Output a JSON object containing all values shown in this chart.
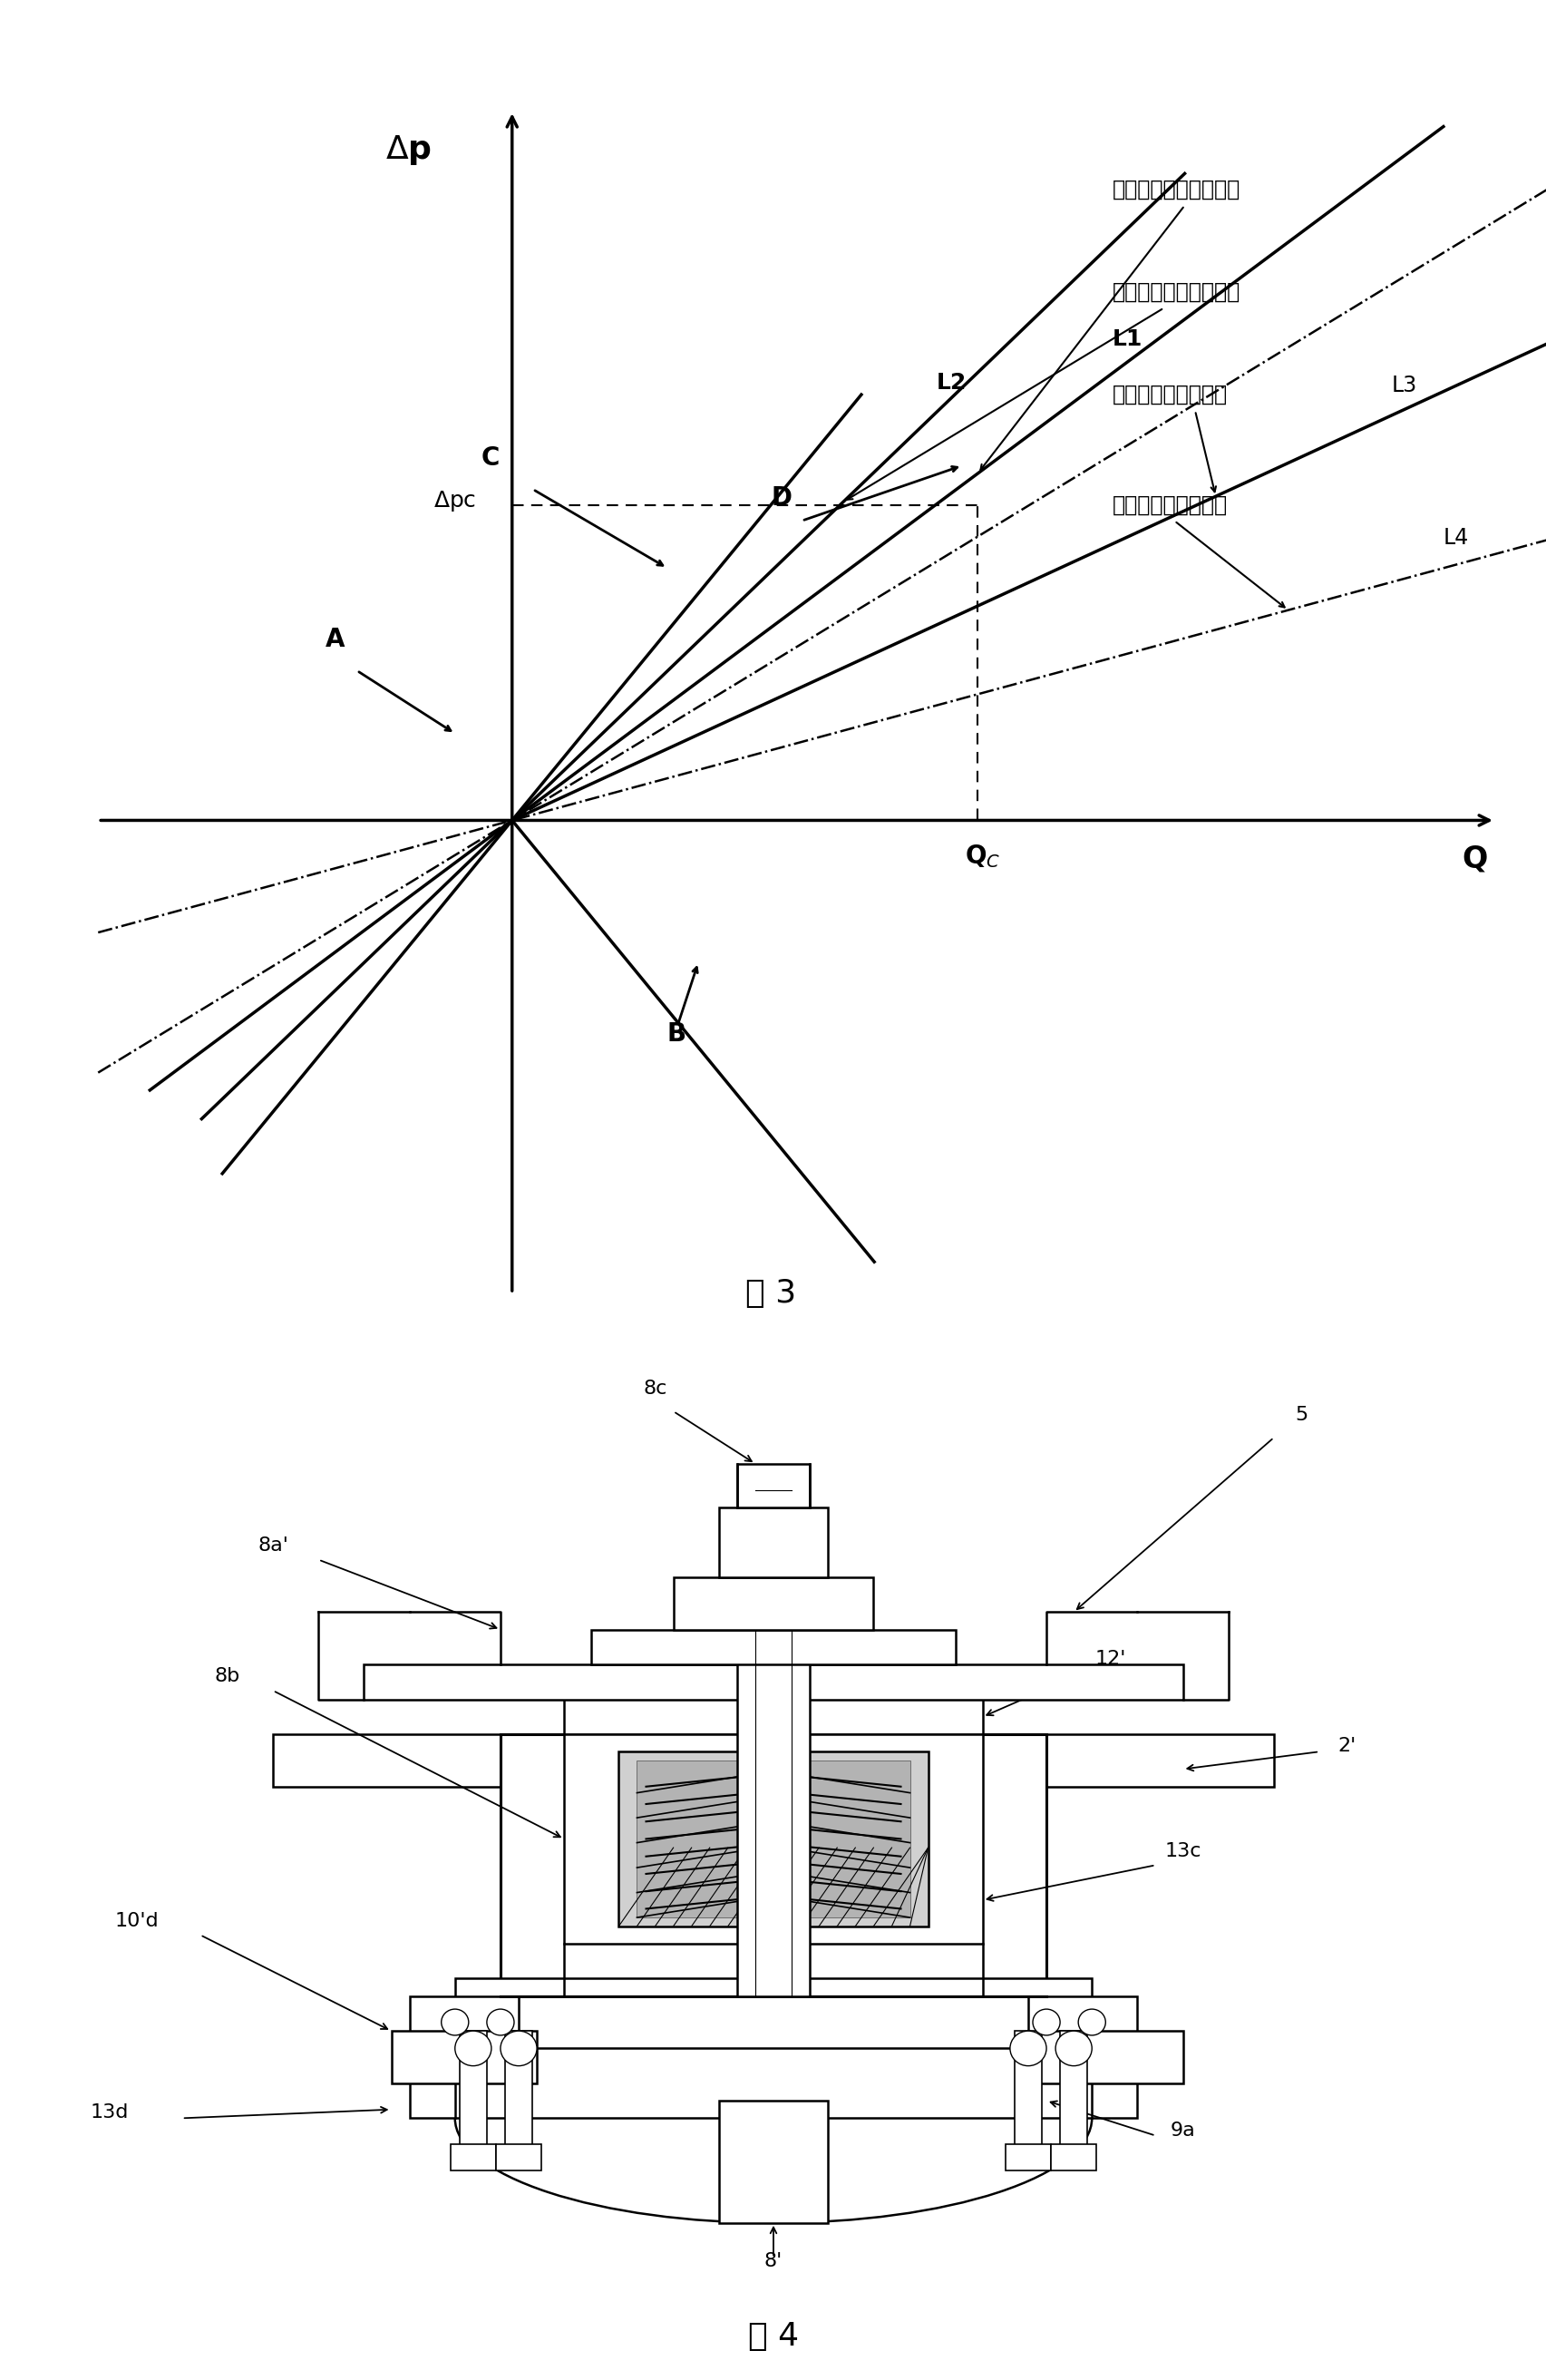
{
  "fig3_title": "图 3",
  "fig4_title": "图 4",
  "background_color": "#ffffff",
  "legend_L1": "间隙密封（相同尺寸）",
  "legend_L2": "间隙密封（短的设计）",
  "legend_L3": "螺纹密封（运转中）",
  "legend_L4": "螺纹密封（停止中）",
  "ox": 2.0,
  "oy": 2.5,
  "qc": 4.5,
  "dpc": 4.0,
  "xlim": [
    -2.5,
    12
  ],
  "ylim": [
    -4,
    12
  ]
}
